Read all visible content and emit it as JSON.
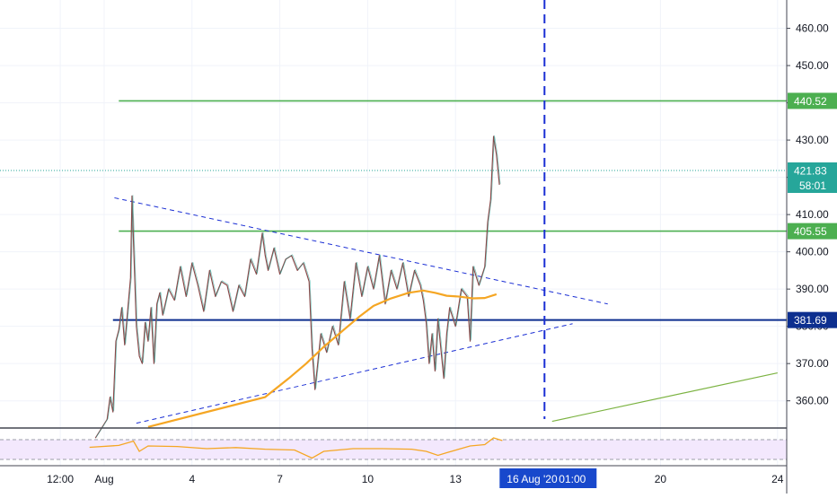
{
  "chart_data": {
    "type": "candlestick",
    "y_axis": {
      "ticks": [
        "460.00",
        "450.00",
        "440.00",
        "430.00",
        "420.00",
        "410.00",
        "400.00",
        "390.00",
        "380.00",
        "370.00",
        "360.00"
      ],
      "tick_values": [
        460,
        450,
        440,
        430,
        420,
        410,
        400,
        390,
        380,
        370,
        360
      ],
      "ylim": [
        352.7,
        467.6
      ]
    },
    "x_axis": {
      "ticks": [
        {
          "label": "12:00",
          "t": -1.5
        },
        {
          "label": "Aug",
          "t": 0
        },
        {
          "label": "4",
          "t": 3
        },
        {
          "label": "7",
          "t": 6
        },
        {
          "label": "10",
          "t": 9
        },
        {
          "label": "13",
          "t": 12
        },
        {
          "label": "20",
          "t": 19
        },
        {
          "label": "24",
          "t": 23
        }
      ],
      "cursor_label": {
        "date": "16 Aug '20",
        "time": "01:00",
        "t": 15.04
      }
    },
    "price_levels": [
      {
        "label": "440.52",
        "value": 440.52,
        "color": "#4caf50",
        "t_start": 0.5
      },
      {
        "label": "405.55",
        "value": 405.55,
        "color": "#4caf50",
        "t_start": 0.5
      },
      {
        "label": "381.69",
        "value": 381.69,
        "color": "#0d2f8f",
        "t_start": 0.3
      }
    ],
    "last_price": {
      "label": "421.83",
      "value": 421.83,
      "countdown": "58:01",
      "color": "#26a69a"
    },
    "triangle": {
      "upper": [
        [
          0.35,
          414.5
        ],
        [
          17.2,
          386.0
        ]
      ],
      "lower": [
        [
          1.1,
          354.0
        ],
        [
          16.0,
          380.7
        ]
      ],
      "color": "#1a2ed4"
    },
    "green_trendline": [
      [
        15.3,
        354.5
      ],
      [
        23.0,
        367.5
      ]
    ],
    "moving_average": {
      "color": "#f5a623",
      "points": [
        [
          1.5,
          353
        ],
        [
          5.5,
          361
        ],
        [
          6.3,
          366
        ],
        [
          6.9,
          370
        ],
        [
          7.5,
          374.5
        ],
        [
          8.1,
          378.5
        ],
        [
          8.7,
          382.5
        ],
        [
          9.2,
          385.5
        ],
        [
          9.8,
          387.5
        ],
        [
          10.4,
          389
        ],
        [
          10.9,
          389.6
        ],
        [
          11.3,
          389.0
        ],
        [
          11.7,
          388.2
        ],
        [
          12.1,
          388.0
        ],
        [
          12.6,
          387.5
        ],
        [
          13.0,
          387.6
        ],
        [
          13.4,
          388.6
        ]
      ]
    },
    "price_path": [
      [
        -0.3,
        350
      ],
      [
        0.1,
        355
      ],
      [
        0.2,
        361
      ],
      [
        0.3,
        357
      ],
      [
        0.4,
        376
      ],
      [
        0.5,
        379
      ],
      [
        0.6,
        385
      ],
      [
        0.7,
        375
      ],
      [
        0.8,
        384
      ],
      [
        0.9,
        393
      ],
      [
        0.95,
        415
      ],
      [
        1.0,
        403
      ],
      [
        1.1,
        380
      ],
      [
        1.2,
        372
      ],
      [
        1.3,
        370
      ],
      [
        1.4,
        381
      ],
      [
        1.5,
        376
      ],
      [
        1.6,
        385
      ],
      [
        1.7,
        370
      ],
      [
        1.8,
        386
      ],
      [
        1.9,
        389
      ],
      [
        2.0,
        383
      ],
      [
        2.2,
        390
      ],
      [
        2.4,
        387
      ],
      [
        2.6,
        396
      ],
      [
        2.8,
        388
      ],
      [
        3.0,
        397
      ],
      [
        3.2,
        391
      ],
      [
        3.4,
        384
      ],
      [
        3.6,
        395
      ],
      [
        3.8,
        388
      ],
      [
        4.0,
        392
      ],
      [
        4.2,
        391
      ],
      [
        4.4,
        384
      ],
      [
        4.6,
        391
      ],
      [
        4.8,
        388
      ],
      [
        5.0,
        398
      ],
      [
        5.2,
        394
      ],
      [
        5.4,
        405
      ],
      [
        5.5,
        399
      ],
      [
        5.6,
        395
      ],
      [
        5.8,
        401
      ],
      [
        6.0,
        394
      ],
      [
        6.2,
        398
      ],
      [
        6.4,
        399
      ],
      [
        6.6,
        395
      ],
      [
        6.8,
        397
      ],
      [
        7.0,
        392
      ],
      [
        7.1,
        374
      ],
      [
        7.2,
        363
      ],
      [
        7.4,
        378
      ],
      [
        7.6,
        373
      ],
      [
        7.8,
        380
      ],
      [
        8.0,
        375
      ],
      [
        8.2,
        392
      ],
      [
        8.4,
        382
      ],
      [
        8.6,
        397
      ],
      [
        8.8,
        388
      ],
      [
        9.0,
        396
      ],
      [
        9.2,
        390
      ],
      [
        9.4,
        399
      ],
      [
        9.6,
        386
      ],
      [
        9.8,
        395
      ],
      [
        10.0,
        390
      ],
      [
        10.2,
        397
      ],
      [
        10.4,
        388
      ],
      [
        10.6,
        395
      ],
      [
        10.8,
        391
      ],
      [
        10.9,
        387
      ],
      [
        11.0,
        381
      ],
      [
        11.1,
        370
      ],
      [
        11.2,
        378
      ],
      [
        11.3,
        368
      ],
      [
        11.4,
        382
      ],
      [
        11.5,
        374
      ],
      [
        11.6,
        366
      ],
      [
        11.7,
        378
      ],
      [
        11.8,
        385
      ],
      [
        12.0,
        380
      ],
      [
        12.2,
        390
      ],
      [
        12.4,
        388
      ],
      [
        12.5,
        376
      ],
      [
        12.6,
        396
      ],
      [
        12.8,
        391
      ],
      [
        13.0,
        396
      ],
      [
        13.1,
        408
      ],
      [
        13.2,
        414
      ],
      [
        13.3,
        431
      ],
      [
        13.4,
        426
      ],
      [
        13.5,
        418
      ]
    ],
    "cursor_vline": {
      "t": 15.04,
      "color": "#1a2ed4"
    },
    "rsi": {
      "color": "#f5a623",
      "points": [
        [
          -0.5,
          0.45
        ],
        [
          0.5,
          0.38
        ],
        [
          1.0,
          0.22
        ],
        [
          1.2,
          0.6
        ],
        [
          1.5,
          0.4
        ],
        [
          2.5,
          0.42
        ],
        [
          3.5,
          0.5
        ],
        [
          4.5,
          0.46
        ],
        [
          5.5,
          0.52
        ],
        [
          6.5,
          0.55
        ],
        [
          7.1,
          0.85
        ],
        [
          7.5,
          0.6
        ],
        [
          8.5,
          0.5
        ],
        [
          9.5,
          0.5
        ],
        [
          10.5,
          0.52
        ],
        [
          11.0,
          0.6
        ],
        [
          11.4,
          0.75
        ],
        [
          11.7,
          0.65
        ],
        [
          12.5,
          0.4
        ],
        [
          13.0,
          0.35
        ],
        [
          13.3,
          0.1
        ],
        [
          13.6,
          0.2
        ]
      ]
    }
  }
}
